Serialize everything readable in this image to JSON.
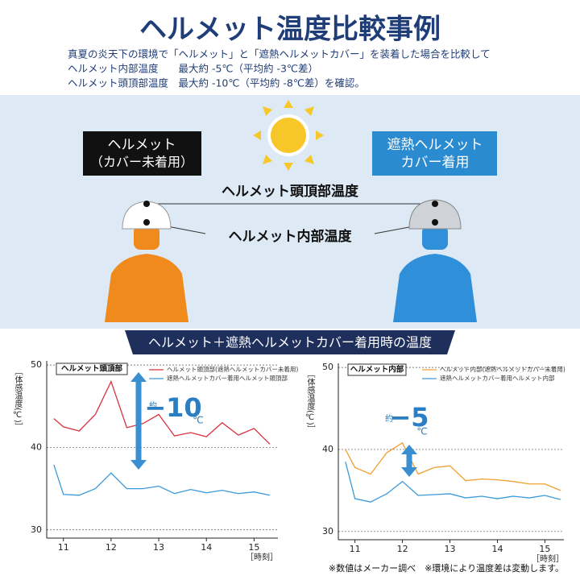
{
  "header": {
    "title": "ヘルメット温度比較事例",
    "lines": [
      "真夏の炎天下の環境で「ヘルメット」と「遮熱ヘルメットカバー」を装着した場合を比較して",
      "ヘルメット内部温度　　最大約 -5℃（平均約 -3℃差）",
      "ヘルメット頭頂部温度　最大約 -10℃（平均約 -8℃差）を確認。"
    ]
  },
  "illustration": {
    "left_label": [
      "ヘルメット",
      "（カバー未着用）"
    ],
    "right_label": [
      "遮熱ヘルメット",
      "カバー着用"
    ],
    "top_label": "ヘルメット頭頂部温度",
    "inner_label": "ヘルメット内部温度"
  },
  "banner": "ヘルメット＋遮熱ヘルメットカバー着用時の温度",
  "chart_data": [
    {
      "type": "line",
      "title": "ヘルメット頭頂部",
      "y_label": "［体感温度(℃)］",
      "x_label": "［時刻］",
      "x": [
        10.8,
        11,
        11.33,
        11.67,
        12,
        12.33,
        12.67,
        13,
        13.33,
        13.67,
        14,
        14.33,
        14.67,
        15,
        15.33
      ],
      "series": [
        {
          "name": "ヘルメット頭頂部(遮熱ヘルメットカバー未着用)",
          "color": "#d9333f",
          "values": [
            43.5,
            42.5,
            42,
            44,
            48,
            42.4,
            42.9,
            44,
            41.4,
            41.8,
            41.3,
            43,
            41.5,
            42.3,
            40.4
          ]
        },
        {
          "name": "遮熱ヘルメットカバー着用ヘルメット頭頂部",
          "color": "#3a9ad9",
          "values": [
            37.9,
            34.3,
            34.2,
            35,
            36.9,
            35,
            35,
            35.3,
            34.4,
            34.9,
            34.5,
            34.8,
            34.4,
            34.6,
            34.2
          ]
        }
      ],
      "xlim": [
        10.65,
        15.5
      ],
      "xticks": [
        11,
        12,
        13,
        14,
        15
      ],
      "ylim": [
        29,
        50.5
      ],
      "yticks": [
        30,
        40,
        50
      ],
      "grid": true,
      "annotation": {
        "prefix": "約",
        "value": "−10",
        "unit": "℃"
      }
    },
    {
      "type": "line",
      "title": "ヘルメット内部",
      "y_label": "［体感温度(℃)］",
      "x_label": "［時刻］",
      "x": [
        10.8,
        11,
        11.33,
        11.67,
        12,
        12.33,
        12.67,
        13,
        13.33,
        13.67,
        14,
        14.33,
        14.67,
        15,
        15.33
      ],
      "series": [
        {
          "name": "ヘルメット内部(遮熱ヘルメットカバー未着用)",
          "color": "#f0a030",
          "values": [
            40,
            37.8,
            37,
            39.6,
            40.8,
            37,
            37.8,
            38,
            36.2,
            36.4,
            36.3,
            36.1,
            35.8,
            35.8,
            35
          ]
        },
        {
          "name": "遮熱ヘルメットカバー着用ヘルメット内部",
          "color": "#3a9ad9",
          "values": [
            38.5,
            34,
            33.6,
            34.6,
            36.1,
            34.4,
            34.5,
            34.6,
            34.1,
            34.3,
            34,
            34.3,
            34.1,
            34.4,
            33.9
          ]
        }
      ],
      "xlim": [
        10.65,
        15.4
      ],
      "xticks": [
        11,
        12,
        13,
        14,
        15
      ],
      "ylim": [
        29,
        50.5
      ],
      "yticks": [
        30,
        40,
        50
      ],
      "grid": true,
      "annotation": {
        "prefix": "約",
        "value": "−5",
        "unit": "℃"
      }
    }
  ],
  "footnote": "※数値はメーカー調べ　※環境により温度差は変動します。"
}
